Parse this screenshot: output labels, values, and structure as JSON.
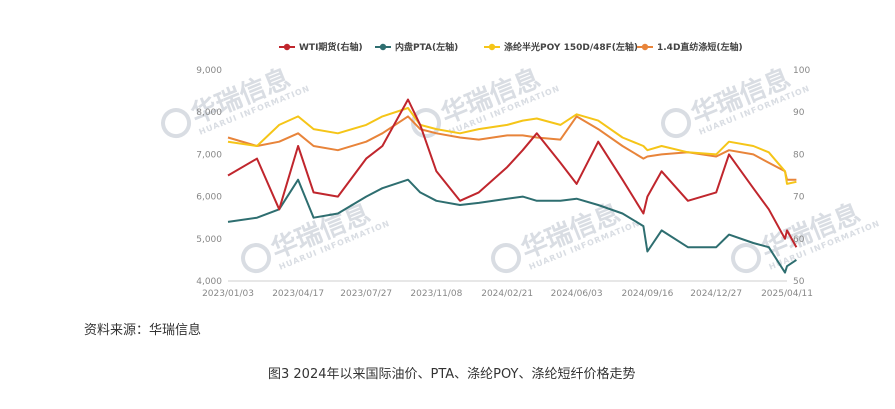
{
  "chart_data": {
    "type": "line",
    "title": "",
    "legend_position": "top",
    "x_ticks": [
      "2023/01/03",
      "2023/04/17",
      "2023/07/27",
      "2023/11/08",
      "2024/02/21",
      "2024/06/03",
      "2024/09/16",
      "2024/12/27",
      "2025/04/11"
    ],
    "y_left": {
      "ticks": [
        "4,000",
        "5,000",
        "6,000",
        "7,000",
        "8,000",
        "9,000"
      ],
      "range": [
        4000,
        9000
      ]
    },
    "y_right": {
      "ticks": [
        "50",
        "60",
        "70",
        "80",
        "90",
        "100"
      ],
      "range": [
        50,
        100
      ]
    },
    "series": [
      {
        "name": "WTI期货(右轴)",
        "axis": "right",
        "color": "#c0262d",
        "x": [
          "2023/01/03",
          "2023/02/15",
          "2023/03/20",
          "2023/04/17",
          "2023/05/10",
          "2023/06/15",
          "2023/07/27",
          "2023/08/20",
          "2023/09/27",
          "2023/10/15",
          "2023/11/08",
          "2023/12/13",
          "2024/01/10",
          "2024/02/21",
          "2024/03/15",
          "2024/04/05",
          "2024/05/10",
          "2024/06/03",
          "2024/07/05",
          "2024/08/10",
          "2024/09/10",
          "2024/09/16",
          "2024/10/07",
          "2024/11/15",
          "2024/12/27",
          "2025/01/15",
          "2025/02/20",
          "2025/03/15",
          "2025/04/08",
          "2025/04/11",
          "2025/04/25"
        ],
        "y": [
          75,
          79,
          67,
          82,
          71,
          70,
          79,
          82,
          93,
          87,
          76,
          69,
          71,
          77,
          81,
          85,
          78,
          73,
          83,
          74,
          66,
          70,
          76,
          69,
          71,
          80,
          72,
          67,
          60,
          62,
          58
        ]
      },
      {
        "name": "内盘PTA(左轴)",
        "axis": "left",
        "color": "#2e6e70",
        "x": [
          "2023/01/03",
          "2023/02/15",
          "2023/03/20",
          "2023/04/17",
          "2023/05/10",
          "2023/06/15",
          "2023/07/27",
          "2023/08/20",
          "2023/09/27",
          "2023/10/15",
          "2023/11/08",
          "2023/12/13",
          "2024/01/10",
          "2024/02/21",
          "2024/03/15",
          "2024/04/05",
          "2024/05/10",
          "2024/06/03",
          "2024/07/05",
          "2024/08/10",
          "2024/09/10",
          "2024/09/16",
          "2024/10/07",
          "2024/11/15",
          "2024/12/27",
          "2025/01/15",
          "2025/02/20",
          "2025/03/15",
          "2025/04/08",
          "2025/04/11",
          "2025/04/25"
        ],
        "y": [
          5400,
          5500,
          5700,
          6400,
          5500,
          5600,
          6000,
          6200,
          6400,
          6100,
          5900,
          5800,
          5850,
          5950,
          6000,
          5900,
          5900,
          5950,
          5800,
          5600,
          5300,
          4700,
          5200,
          4800,
          4800,
          5100,
          4900,
          4800,
          4200,
          4350,
          4500
        ]
      },
      {
        "name": "涤纶半光POY 150D/48F(左轴)",
        "axis": "left",
        "color": "#f5c518",
        "x": [
          "2023/01/03",
          "2023/02/15",
          "2023/03/20",
          "2023/04/17",
          "2023/05/10",
          "2023/06/15",
          "2023/07/27",
          "2023/08/20",
          "2023/09/27",
          "2023/10/15",
          "2023/11/08",
          "2023/12/13",
          "2024/01/10",
          "2024/02/21",
          "2024/03/15",
          "2024/04/05",
          "2024/05/10",
          "2024/06/03",
          "2024/07/05",
          "2024/08/10",
          "2024/09/10",
          "2024/09/16",
          "2024/10/07",
          "2024/11/15",
          "2024/12/27",
          "2025/01/15",
          "2025/02/20",
          "2025/03/15",
          "2025/04/08",
          "2025/04/11",
          "2025/04/25"
        ],
        "y": [
          7300,
          7200,
          7700,
          7900,
          7600,
          7500,
          7700,
          7900,
          8100,
          7700,
          7600,
          7500,
          7600,
          7700,
          7800,
          7850,
          7700,
          7950,
          7800,
          7400,
          7200,
          7100,
          7200,
          7050,
          7000,
          7300,
          7200,
          7050,
          6600,
          6300,
          6350
        ]
      },
      {
        "name": "1.4D直纺涤短(左轴)",
        "axis": "left",
        "color": "#e8843a",
        "x": [
          "2023/01/03",
          "2023/02/15",
          "2023/03/20",
          "2023/04/17",
          "2023/05/10",
          "2023/06/15",
          "2023/07/27",
          "2023/08/20",
          "2023/09/27",
          "2023/10/15",
          "2023/11/08",
          "2023/12/13",
          "2024/01/10",
          "2024/02/21",
          "2024/03/15",
          "2024/04/05",
          "2024/05/10",
          "2024/06/03",
          "2024/07/05",
          "2024/08/10",
          "2024/09/10",
          "2024/09/16",
          "2024/10/07",
          "2024/11/15",
          "2024/12/27",
          "2025/01/15",
          "2025/02/20",
          "2025/03/15",
          "2025/04/08",
          "2025/04/11",
          "2025/04/25"
        ],
        "y": [
          7400,
          7200,
          7300,
          7500,
          7200,
          7100,
          7300,
          7500,
          7900,
          7600,
          7500,
          7400,
          7350,
          7450,
          7450,
          7400,
          7350,
          7900,
          7600,
          7200,
          6900,
          6950,
          7000,
          7050,
          6950,
          7100,
          7000,
          6800,
          6600,
          6400,
          6400
        ]
      }
    ]
  },
  "watermark": {
    "brand": "华瑞信息",
    "sub": "HUARUI INFORMATION"
  },
  "source_text": "资料来源：华瑞信息",
  "caption_text": "图3   2024年以来国际油价、PTA、涤纶POY、涤纶短纤价格走势"
}
